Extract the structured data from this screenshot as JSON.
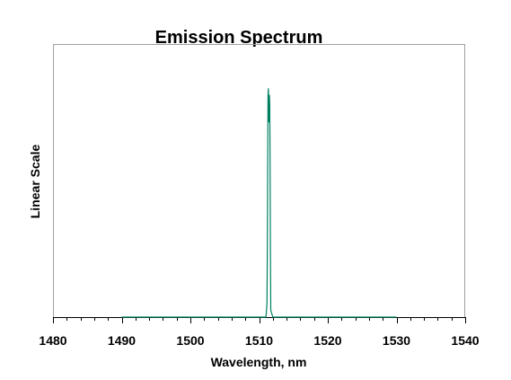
{
  "chart_data": {
    "type": "line",
    "title": "Emission Spectrum",
    "xlabel": "Wavelength, nm",
    "ylabel": "Linear Scale",
    "xlim": [
      1480,
      1540
    ],
    "ylim": [
      0,
      1
    ],
    "x_major_ticks": [
      1480,
      1490,
      1500,
      1510,
      1520,
      1530,
      1540
    ],
    "x_minor_step": 2,
    "y_tick_labels": false,
    "grid": false,
    "legend": "none",
    "line_color": "#008060",
    "series": [
      {
        "x": [
          1490,
          1511.0,
          1511.15,
          1511.2,
          1511.25,
          1511.3,
          1511.35,
          1511.4,
          1511.45,
          1511.5,
          1511.55,
          1511.6,
          1511.65,
          1511.7,
          1512.0,
          1530
        ],
        "values": [
          0,
          0,
          0.06,
          0.3,
          0.65,
          0.97,
          0.999,
          0.9,
          0.85,
          0.97,
          0.93,
          0.68,
          0.3,
          0.03,
          0,
          0
        ]
      }
    ]
  }
}
